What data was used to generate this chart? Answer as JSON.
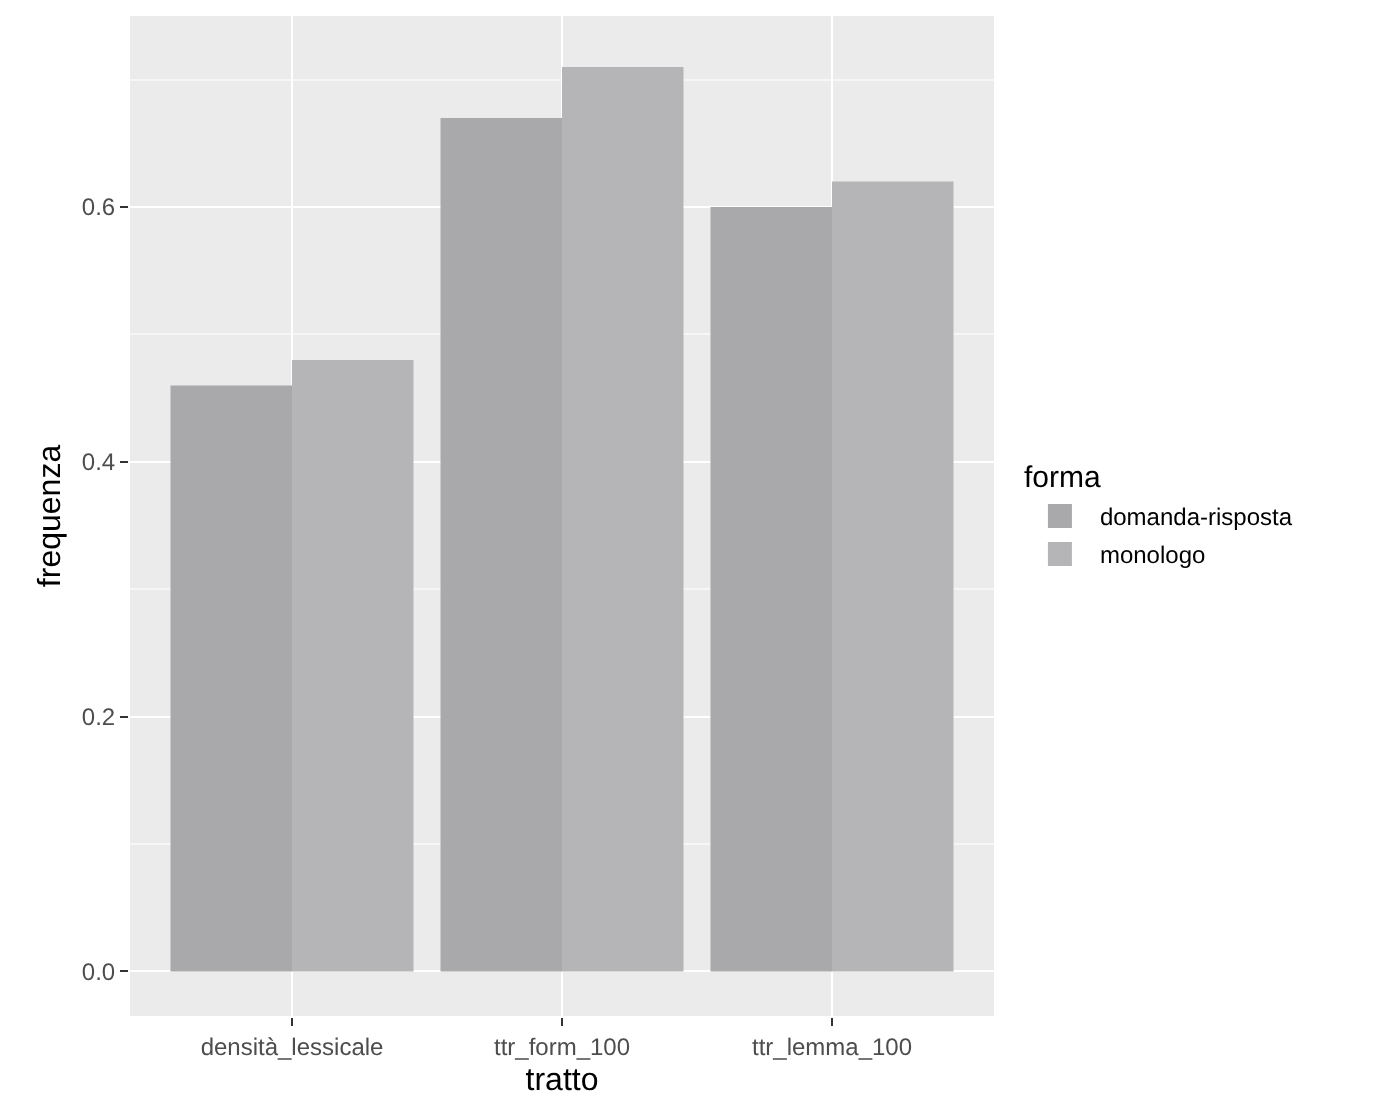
{
  "chart_data": {
    "type": "bar",
    "xlabel": "tratto",
    "ylabel": "frequenza",
    "legend_title": "forma",
    "categories": [
      "densità_lessicale",
      "ttr_form_100",
      "ttr_lemma_100"
    ],
    "series": [
      {
        "name": "domanda-risposta",
        "color": "#a9a9ab",
        "values": [
          0.46,
          0.67,
          0.6
        ]
      },
      {
        "name": "monologo",
        "color": "#b5b5b7",
        "values": [
          0.48,
          0.71,
          0.62
        ]
      }
    ],
    "ylim": [
      -0.035,
      0.75
    ],
    "yticks": [
      {
        "value": 0,
        "label": "0.0"
      },
      {
        "value": 0.2,
        "label": "0.2"
      },
      {
        "value": 0.4,
        "label": "0.4"
      },
      {
        "value": 0.6,
        "label": "0.6"
      }
    ],
    "grid": true,
    "legend": "right"
  }
}
